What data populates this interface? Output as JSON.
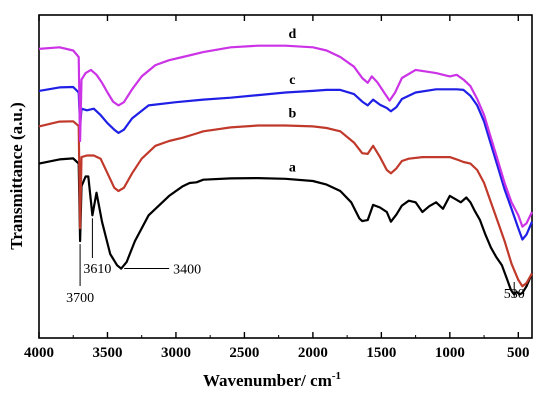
{
  "chart_data": {
    "type": "line",
    "xlabel": "Wavenumber/ cm",
    "xlabel_superscript": "-1",
    "ylabel": "Transmittance (a.u.)",
    "xlim": [
      4000,
      400
    ],
    "x_reversed": true,
    "ylim": [
      0,
      1
    ],
    "y_ticks_labeled": false,
    "x_ticks": [
      4000,
      3500,
      3000,
      2500,
      2000,
      1500,
      1000,
      500
    ],
    "x_tick_labels": [
      "4000",
      "3500",
      "3000",
      "2500",
      "2000",
      "1500",
      "1000",
      "500"
    ],
    "series": [
      {
        "name": "a",
        "color": "#000000",
        "label_x": 2150,
        "x": [
          4000,
          3850,
          3750,
          3710,
          3700,
          3690,
          3660,
          3640,
          3610,
          3580,
          3540,
          3480,
          3430,
          3400,
          3360,
          3300,
          3200,
          3050,
          2950,
          2900,
          2850,
          2800,
          2600,
          2400,
          2200,
          2000,
          1900,
          1800,
          1720,
          1660,
          1640,
          1600,
          1560,
          1510,
          1460,
          1430,
          1390,
          1350,
          1300,
          1250,
          1200,
          1150,
          1100,
          1050,
          1000,
          960,
          920,
          880,
          850,
          820,
          780,
          740,
          700,
          660,
          620,
          580,
          555,
          540,
          530,
          520,
          510,
          490,
          470,
          440,
          400
        ],
        "y": [
          0.54,
          0.553,
          0.556,
          0.54,
          0.3,
          0.47,
          0.5,
          0.5,
          0.38,
          0.45,
          0.36,
          0.26,
          0.225,
          0.215,
          0.235,
          0.3,
          0.38,
          0.44,
          0.47,
          0.48,
          0.482,
          0.49,
          0.494,
          0.495,
          0.493,
          0.486,
          0.475,
          0.455,
          0.42,
          0.37,
          0.362,
          0.365,
          0.412,
          0.404,
          0.39,
          0.36,
          0.382,
          0.41,
          0.425,
          0.42,
          0.39,
          0.408,
          0.42,
          0.4,
          0.44,
          0.43,
          0.42,
          0.435,
          0.42,
          0.395,
          0.365,
          0.32,
          0.28,
          0.25,
          0.225,
          0.18,
          0.15,
          0.14,
          0.135,
          0.14,
          0.142,
          0.135,
          0.14,
          0.16,
          0.2
        ]
      },
      {
        "name": "b",
        "color": "#C0392B",
        "label_x": 2150,
        "x": [
          4000,
          3850,
          3750,
          3710,
          3700,
          3690,
          3650,
          3600,
          3550,
          3500,
          3450,
          3420,
          3380,
          3320,
          3250,
          3150,
          3050,
          2950,
          2850,
          2800,
          2600,
          2400,
          2200,
          2000,
          1900,
          1800,
          1700,
          1640,
          1600,
          1560,
          1510,
          1460,
          1430,
          1390,
          1350,
          1300,
          1200,
          1100,
          1000,
          950,
          900,
          850,
          800,
          750,
          700,
          650,
          600,
          550,
          500,
          470,
          440,
          400
        ],
        "y": [
          0.655,
          0.67,
          0.671,
          0.656,
          0.34,
          0.56,
          0.565,
          0.565,
          0.555,
          0.51,
          0.465,
          0.455,
          0.465,
          0.51,
          0.555,
          0.595,
          0.61,
          0.62,
          0.633,
          0.64,
          0.652,
          0.658,
          0.658,
          0.655,
          0.65,
          0.64,
          0.605,
          0.572,
          0.57,
          0.595,
          0.56,
          0.52,
          0.51,
          0.525,
          0.548,
          0.555,
          0.56,
          0.56,
          0.56,
          0.553,
          0.545,
          0.54,
          0.52,
          0.48,
          0.42,
          0.36,
          0.3,
          0.23,
          0.18,
          0.16,
          0.17,
          0.2
        ]
      },
      {
        "name": "c",
        "color": "#1F1FE6",
        "label_x": 2150,
        "x": [
          4000,
          3850,
          3750,
          3710,
          3700,
          3690,
          3650,
          3600,
          3550,
          3500,
          3450,
          3420,
          3380,
          3320,
          3200,
          3000,
          2800,
          2600,
          2400,
          2200,
          2000,
          1900,
          1800,
          1700,
          1640,
          1600,
          1560,
          1510,
          1460,
          1430,
          1390,
          1350,
          1250,
          1100,
          950,
          900,
          850,
          800,
          750,
          700,
          650,
          600,
          550,
          500,
          470,
          440,
          400
        ],
        "y": [
          0.765,
          0.776,
          0.777,
          0.76,
          0.655,
          0.71,
          0.705,
          0.71,
          0.69,
          0.665,
          0.645,
          0.635,
          0.645,
          0.68,
          0.72,
          0.73,
          0.738,
          0.744,
          0.752,
          0.76,
          0.765,
          0.768,
          0.768,
          0.755,
          0.732,
          0.72,
          0.738,
          0.722,
          0.712,
          0.702,
          0.715,
          0.74,
          0.76,
          0.77,
          0.77,
          0.768,
          0.75,
          0.72,
          0.67,
          0.6,
          0.53,
          0.46,
          0.4,
          0.34,
          0.305,
          0.32,
          0.36
        ]
      },
      {
        "name": "d",
        "color": "#CC33E6",
        "label_x": 2150,
        "x": [
          4000,
          3850,
          3750,
          3710,
          3700,
          3690,
          3660,
          3620,
          3580,
          3540,
          3500,
          3460,
          3420,
          3380,
          3320,
          3250,
          3150,
          3050,
          2950,
          2800,
          2600,
          2400,
          2200,
          2000,
          1900,
          1800,
          1700,
          1640,
          1600,
          1570,
          1530,
          1480,
          1440,
          1400,
          1350,
          1250,
          1100,
          1000,
          950,
          900,
          850,
          800,
          750,
          700,
          650,
          600,
          550,
          500,
          470,
          440,
          400
        ],
        "y": [
          0.895,
          0.9,
          0.89,
          0.87,
          0.61,
          0.8,
          0.82,
          0.83,
          0.815,
          0.79,
          0.76,
          0.732,
          0.72,
          0.73,
          0.77,
          0.81,
          0.845,
          0.86,
          0.87,
          0.885,
          0.9,
          0.905,
          0.905,
          0.9,
          0.89,
          0.87,
          0.84,
          0.805,
          0.79,
          0.81,
          0.792,
          0.76,
          0.735,
          0.76,
          0.805,
          0.83,
          0.82,
          0.81,
          0.815,
          0.8,
          0.78,
          0.74,
          0.69,
          0.62,
          0.55,
          0.48,
          0.42,
          0.38,
          0.345,
          0.355,
          0.39
        ]
      }
    ],
    "annotations": [
      {
        "text": "3700",
        "x": 3700
      },
      {
        "text": "3610",
        "x": 3610
      },
      {
        "text": "3400",
        "x": 3400
      },
      {
        "text": "530",
        "x": 530
      }
    ]
  }
}
